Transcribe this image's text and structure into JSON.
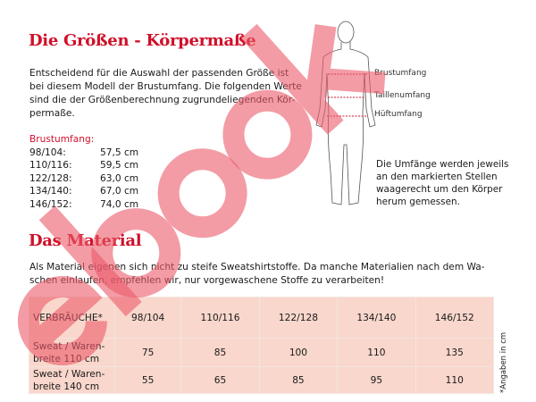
{
  "sizes_section": {
    "title": "Die Größen - Körpermaße",
    "intro_lines": [
      "Entscheidend für die Auswahl der passenden Größe ist",
      "bei diesem Modell der Brustumfang. Die folgenden Werte",
      "sind die der Größenberechnung zugrundeliegenden Kör-",
      "permaße."
    ],
    "chest_label": "Brustumfang:",
    "rows": [
      {
        "size": "98/104:",
        "value": "57,5 cm"
      },
      {
        "size": "110/116:",
        "value": "59,5 cm"
      },
      {
        "size": "122/128:",
        "value": "63,0 cm"
      },
      {
        "size": "134/140:",
        "value": "67,0 cm"
      },
      {
        "size": "146/152:",
        "value": "74,0 cm"
      }
    ]
  },
  "figure": {
    "labels": [
      "Brustumfang",
      "Taillenumfang",
      "Hüftumfang"
    ],
    "caption_lines": [
      "Die Umfänge werden jeweils",
      "an den markierten Stellen",
      "waagerecht um den Körper",
      "herum gemessen."
    ],
    "marker_color": "#d0102a"
  },
  "material_section": {
    "title": "Das Material",
    "text_lines": [
      "Als Material eigenen sich nicht zu steife Sweatshirtstoffe. Da manche Materialien nach dem Wa-",
      "schen einlaufen, empfehlen wir, nur vorgewaschene Stoffe zu verarbeiten!"
    ],
    "table": {
      "header": [
        "VERBRÄUCHE*",
        "98/104",
        "110/116",
        "122/128",
        "134/140",
        "146/152"
      ],
      "rows": [
        {
          "label": [
            "Sweat / Waren-",
            "breite 110 cm"
          ],
          "values": [
            "75",
            "85",
            "100",
            "110",
            "135"
          ]
        },
        {
          "label": [
            "Sweat / Waren-",
            "breite 140 cm"
          ],
          "values": [
            "55",
            "65",
            "85",
            "95",
            "110"
          ]
        }
      ]
    },
    "note": "*Angaben in cm"
  },
  "watermark": "ebook",
  "colors": {
    "heading": "#d0102a",
    "table_bg": "#f9d7cc",
    "watermark": "#eb5a69"
  }
}
